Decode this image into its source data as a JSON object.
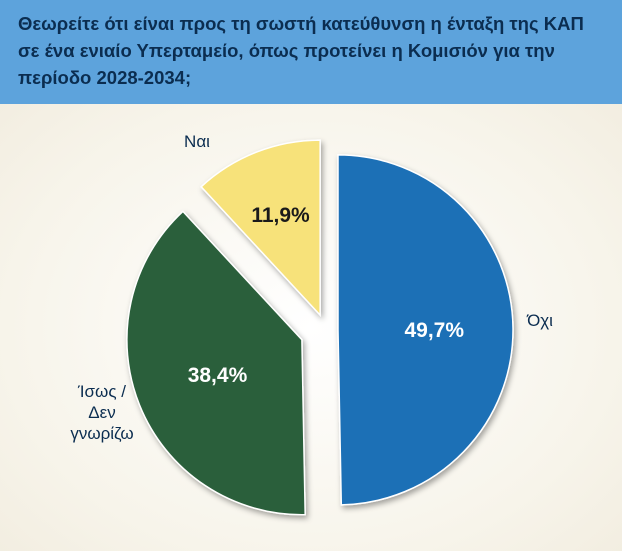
{
  "header": {
    "title": "Θεωρείτε ότι είναι προς τη σωστή κατεύθυνση η ένταξη της ΚΑΠ σε ένα ενιαίο Υπερταμείο, όπως προτείνει η Κομισιόν για την περίοδο 2028-2034;"
  },
  "chart_data": {
    "type": "pie",
    "title": "Θεωρείτε ότι είναι προς τη σωστή κατεύθυνση η ένταξη της ΚΑΠ σε ένα ενιαίο Υπερταμείο, όπως προτείνει η Κομισιόν για την περίοδο 2028-2034;",
    "start": "12 o'clock",
    "direction": "clockwise",
    "exploded": true,
    "slices": [
      {
        "label": "Όχι",
        "value": 49.7,
        "value_label": "49,7%",
        "color": "#1a6fb6"
      },
      {
        "label": "Ίσως / Δεν γνωρίζω",
        "label_lines": [
          "Ίσως /",
          "Δεν",
          "γνωρίζω"
        ],
        "value": 38.4,
        "value_label": "38,4%",
        "color": "#2b5f3a"
      },
      {
        "label": "Ναι",
        "value": 11.9,
        "value_label": "11,9%",
        "color": "#f7e27a"
      }
    ]
  }
}
